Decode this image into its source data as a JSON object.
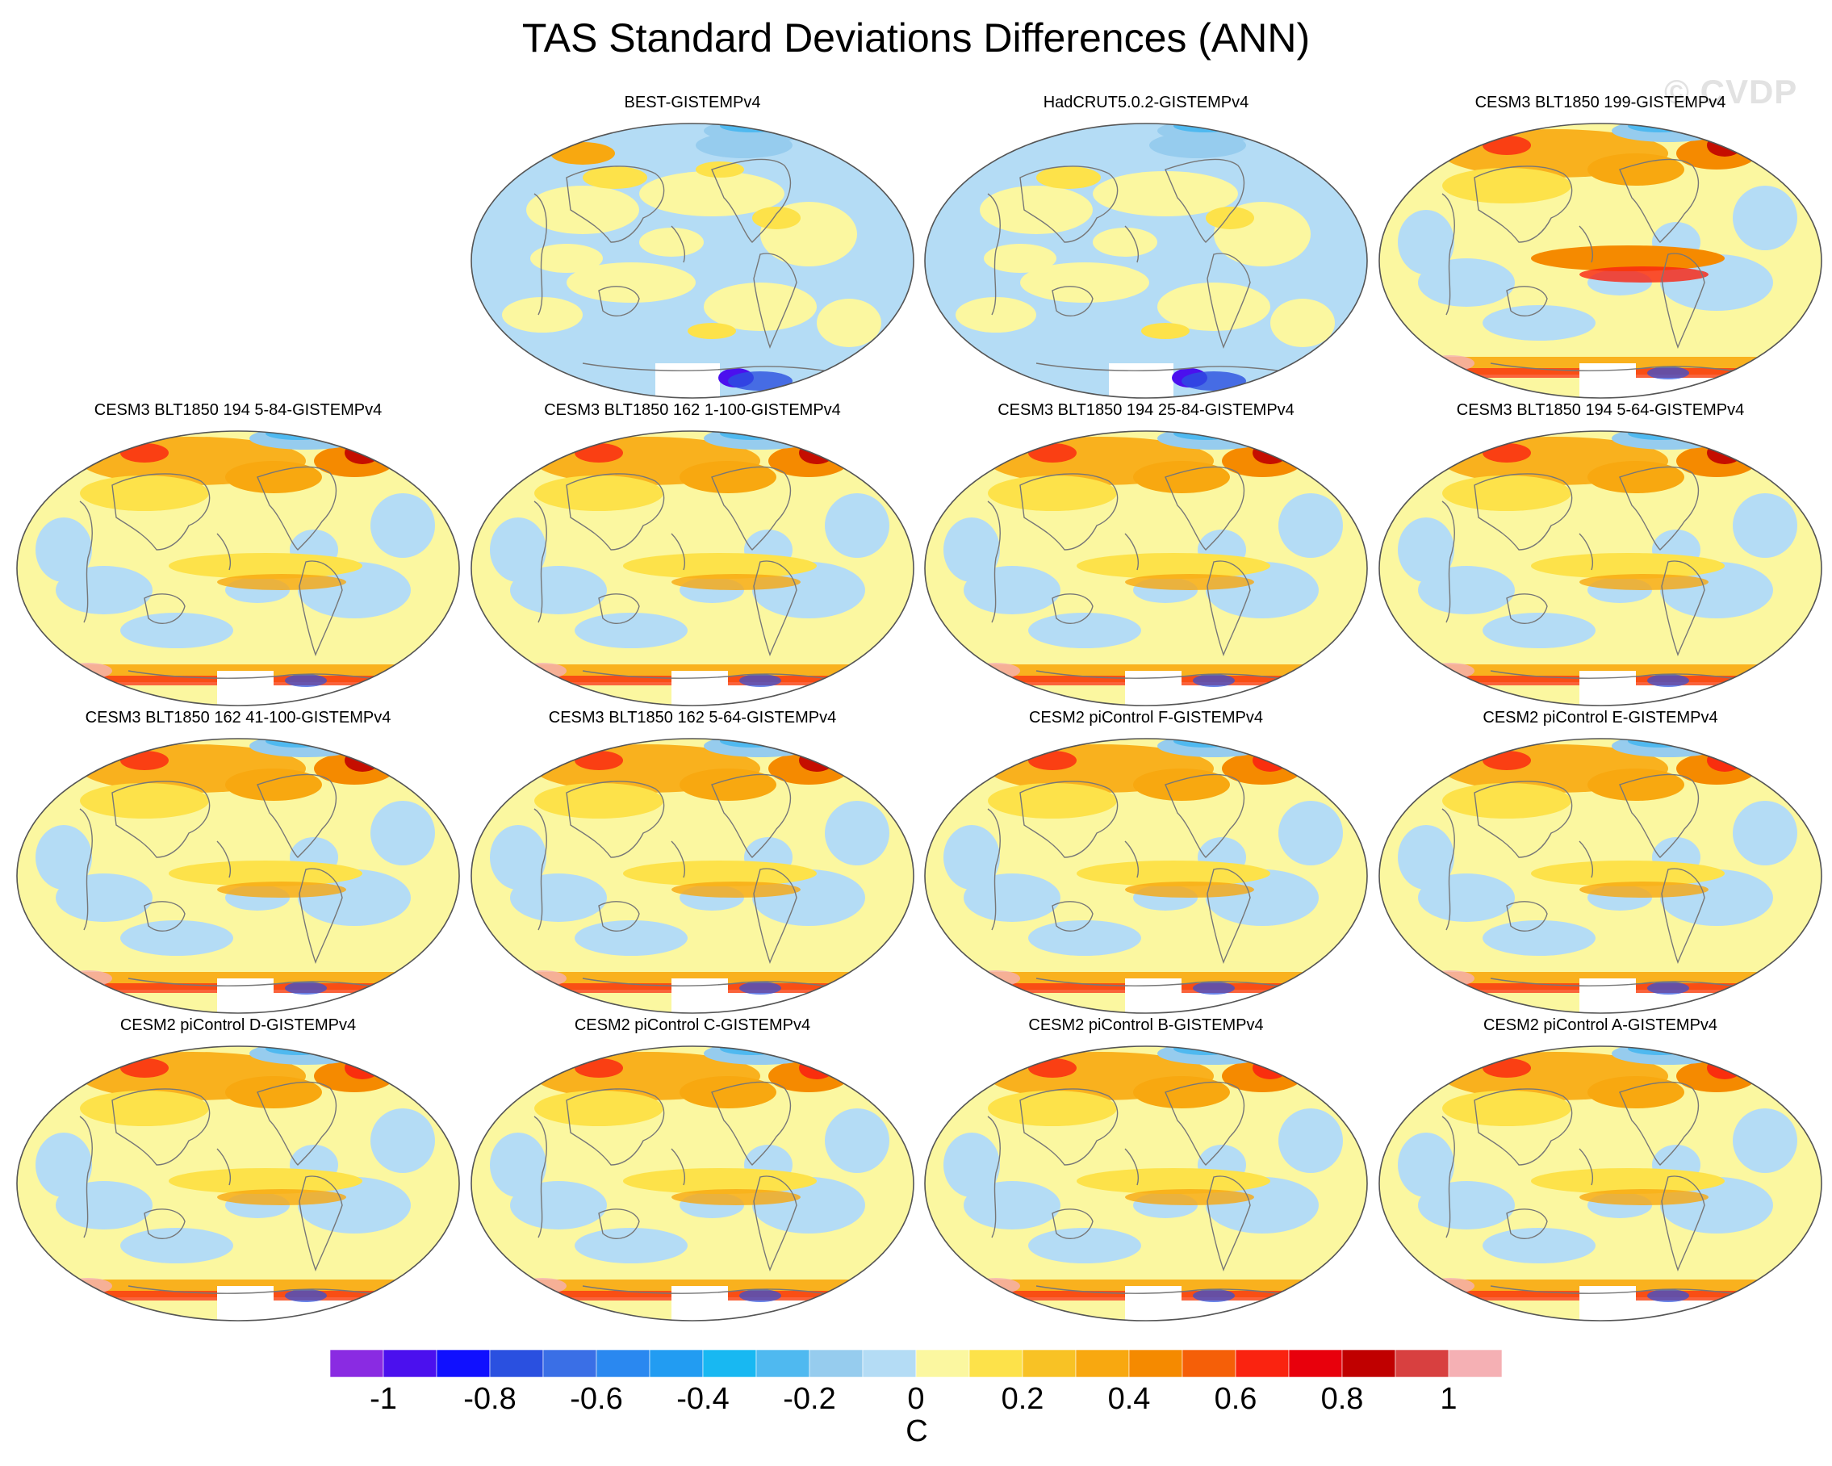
{
  "title": "TAS Standard Deviations Differences (ANN)",
  "watermark": "© CVDP",
  "panels": [
    {
      "label": "BEST-GISTEMPv4",
      "style": "obs-best"
    },
    {
      "label": "HadCRUT5.0.2-GISTEMPv4",
      "style": "obs-had"
    },
    {
      "label": "CESM3 BLT1850 199-GISTEMPv4",
      "style": "warm"
    },
    {
      "label": "CESM3 BLT1850 194 5-84-GISTEMPv4",
      "style": "model"
    },
    {
      "label": "CESM3 BLT1850 162 1-100-GISTEMPv4",
      "style": "model"
    },
    {
      "label": "CESM3 BLT1850 194 25-84-GISTEMPv4",
      "style": "model"
    },
    {
      "label": "CESM3 BLT1850 194 5-64-GISTEMPv4",
      "style": "model"
    },
    {
      "label": "CESM3 BLT1850 162 41-100-GISTEMPv4",
      "style": "model"
    },
    {
      "label": "CESM3 BLT1850 162 5-64-GISTEMPv4",
      "style": "model"
    },
    {
      "label": "CESM2 piControl F-GISTEMPv4",
      "style": "cesm2"
    },
    {
      "label": "CESM2 piControl E-GISTEMPv4",
      "style": "cesm2"
    },
    {
      "label": "CESM2 piControl D-GISTEMPv4",
      "style": "cesm2"
    },
    {
      "label": "CESM2 piControl C-GISTEMPv4",
      "style": "cesm2"
    },
    {
      "label": "CESM2 piControl B-GISTEMPv4",
      "style": "cesm2"
    },
    {
      "label": "CESM2 piControl A-GISTEMPv4",
      "style": "cesm2"
    }
  ],
  "colorbar": {
    "colors": [
      "#8a2be2",
      "#4b10ee",
      "#1010ff",
      "#2a50e0",
      "#3a6fe6",
      "#2a88f0",
      "#229cf2",
      "#18b8f2",
      "#4fb9f0",
      "#96ccee",
      "#b4dcf5",
      "#fbf7a0",
      "#fde24a",
      "#f8c225",
      "#f8a810",
      "#f58a00",
      "#f55f08",
      "#fa2310",
      "#e8000c",
      "#c00000",
      "#d84040",
      "#f5b0b4"
    ],
    "tick_labels": [
      "-1",
      "-0.8",
      "-0.6",
      "-0.4",
      "-0.2",
      "0",
      "0.2",
      "0.4",
      "0.6",
      "0.8",
      "1"
    ],
    "units": "C"
  }
}
